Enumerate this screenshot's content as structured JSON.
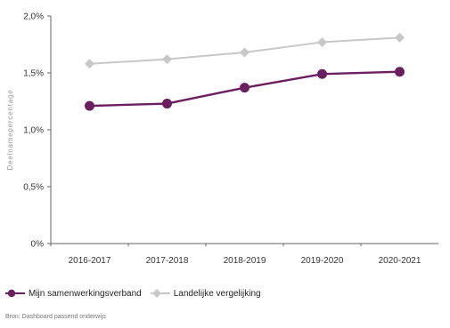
{
  "chart_data": {
    "type": "line",
    "ylabel": "Deelnamepercentage",
    "ylim": [
      0,
      2.0
    ],
    "yticks": [
      {
        "value": 0,
        "label": "0%"
      },
      {
        "value": 0.5,
        "label": "0,5%"
      },
      {
        "value": 1.0,
        "label": "1,0%"
      },
      {
        "value": 1.5,
        "label": "1,5%"
      },
      {
        "value": 2.0,
        "label": "2,0%"
      }
    ],
    "categories": [
      "2016-2017",
      "2017-2018",
      "2018-2019",
      "2019-2020",
      "2020-2021"
    ],
    "grid": false,
    "legend_position": "bottom-left",
    "series": [
      {
        "name": "Mijn samenwerkingsverband",
        "color": "#6b1f5f",
        "marker": "circle",
        "values": [
          1.21,
          1.23,
          1.37,
          1.49,
          1.51
        ]
      },
      {
        "name": "Landelijke vergelijking",
        "color": "#c8c8c8",
        "marker": "diamond",
        "values": [
          1.58,
          1.62,
          1.68,
          1.77,
          1.81
        ]
      }
    ]
  },
  "source": "Bron: Dashboard passend onderwijs"
}
